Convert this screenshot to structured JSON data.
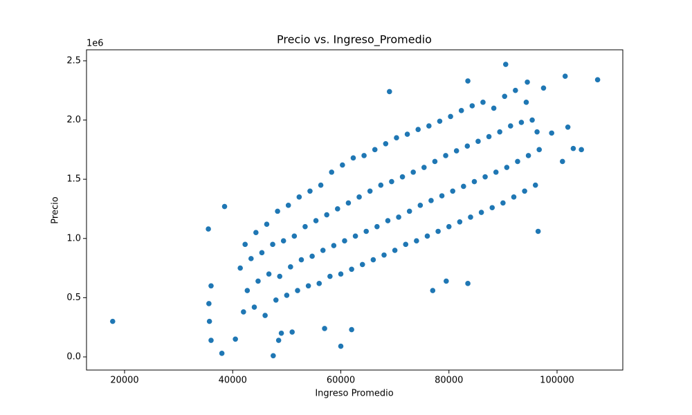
{
  "chart_data": {
    "type": "scatter",
    "title": "Precio vs. Ingreso_Promedio",
    "x_label": "Ingreso Promedio",
    "y_label": "Precio",
    "y_offset_label": "1e6",
    "color": "#1f77b4",
    "xlim": [
      12960,
      112160
    ],
    "ylim": [
      -111000,
      2593000
    ],
    "xticks": [
      20000,
      40000,
      60000,
      80000,
      100000
    ],
    "yticks": [
      {
        "value": 0,
        "label": "0.0"
      },
      {
        "value": 500000,
        "label": "0.5"
      },
      {
        "value": 1000000,
        "label": "1.0"
      },
      {
        "value": 1500000,
        "label": "1.5"
      },
      {
        "value": 2000000,
        "label": "2.0"
      },
      {
        "value": 2500000,
        "label": "2.5"
      }
    ],
    "x": [
      17800,
      35500,
      35600,
      35700,
      36000,
      36000,
      38000,
      38500,
      40500,
      47500,
      60000,
      90500,
      101500,
      107500,
      96500,
      104500,
      103000,
      102000,
      101000,
      83500,
      79500,
      77000,
      69000,
      83500,
      62000,
      48500,
      49000,
      51000,
      57000,
      94500,
      97500,
      99000,
      42000,
      42700,
      41400,
      42300,
      44000,
      44700,
      43400,
      44300,
      46000,
      46700,
      45400,
      46300,
      48000,
      48700,
      47400,
      48300,
      50000,
      50700,
      49400,
      50300,
      52000,
      52700,
      51400,
      52300,
      54000,
      54700,
      53400,
      54300,
      56000,
      56700,
      55400,
      56300,
      58000,
      58700,
      57400,
      58300,
      60000,
      60700,
      59400,
      60300,
      62000,
      62700,
      61400,
      62300,
      64000,
      64700,
      63400,
      64300,
      66000,
      66700,
      65400,
      66300,
      68000,
      68700,
      67400,
      68300,
      70000,
      70700,
      69400,
      70300,
      72000,
      72700,
      71400,
      72300,
      74000,
      74700,
      73400,
      74300,
      76000,
      76700,
      75400,
      76300,
      78000,
      78700,
      77400,
      78300,
      80000,
      80700,
      79400,
      80300,
      82000,
      82700,
      81400,
      82300,
      84000,
      84700,
      83400,
      84300,
      86000,
      86700,
      85400,
      86300,
      88000,
      88700,
      87400,
      88300,
      90000,
      90700,
      89400,
      90300,
      92000,
      92700,
      91400,
      92300,
      94000,
      94700,
      93400,
      94300,
      96000,
      96700,
      95400,
      96300
    ],
    "y": [
      300000,
      1080000,
      450000,
      300000,
      600000,
      140000,
      30000,
      1270000,
      150000,
      10000,
      90000,
      2470000,
      2370000,
      2340000,
      1060000,
      1750000,
      1760000,
      1940000,
      1650000,
      620000,
      640000,
      560000,
      2240000,
      2330000,
      230000,
      140000,
      200000,
      210000,
      240000,
      2320000,
      2270000,
      1890000,
      380000,
      560000,
      750000,
      950000,
      420000,
      640000,
      830000,
      1050000,
      350000,
      700000,
      880000,
      1120000,
      480000,
      680000,
      950000,
      1230000,
      520000,
      760000,
      980000,
      1280000,
      560000,
      820000,
      1020000,
      1350000,
      600000,
      850000,
      1100000,
      1400000,
      620000,
      900000,
      1150000,
      1450000,
      680000,
      940000,
      1200000,
      1560000,
      700000,
      980000,
      1250000,
      1620000,
      740000,
      1020000,
      1300000,
      1680000,
      780000,
      1060000,
      1350000,
      1700000,
      820000,
      1100000,
      1400000,
      1750000,
      860000,
      1150000,
      1450000,
      1800000,
      900000,
      1180000,
      1480000,
      1850000,
      950000,
      1230000,
      1520000,
      1880000,
      980000,
      1280000,
      1560000,
      1920000,
      1020000,
      1320000,
      1600000,
      1950000,
      1060000,
      1360000,
      1650000,
      1990000,
      1100000,
      1400000,
      1700000,
      2030000,
      1140000,
      1440000,
      1740000,
      2080000,
      1180000,
      1480000,
      1780000,
      2120000,
      1220000,
      1520000,
      1820000,
      2150000,
      1260000,
      1560000,
      1860000,
      2100000,
      1300000,
      1600000,
      1900000,
      2200000,
      1350000,
      1650000,
      1950000,
      2250000,
      1400000,
      1700000,
      1980000,
      2150000,
      1450000,
      1750000,
      2000000,
      1900000
    ]
  }
}
